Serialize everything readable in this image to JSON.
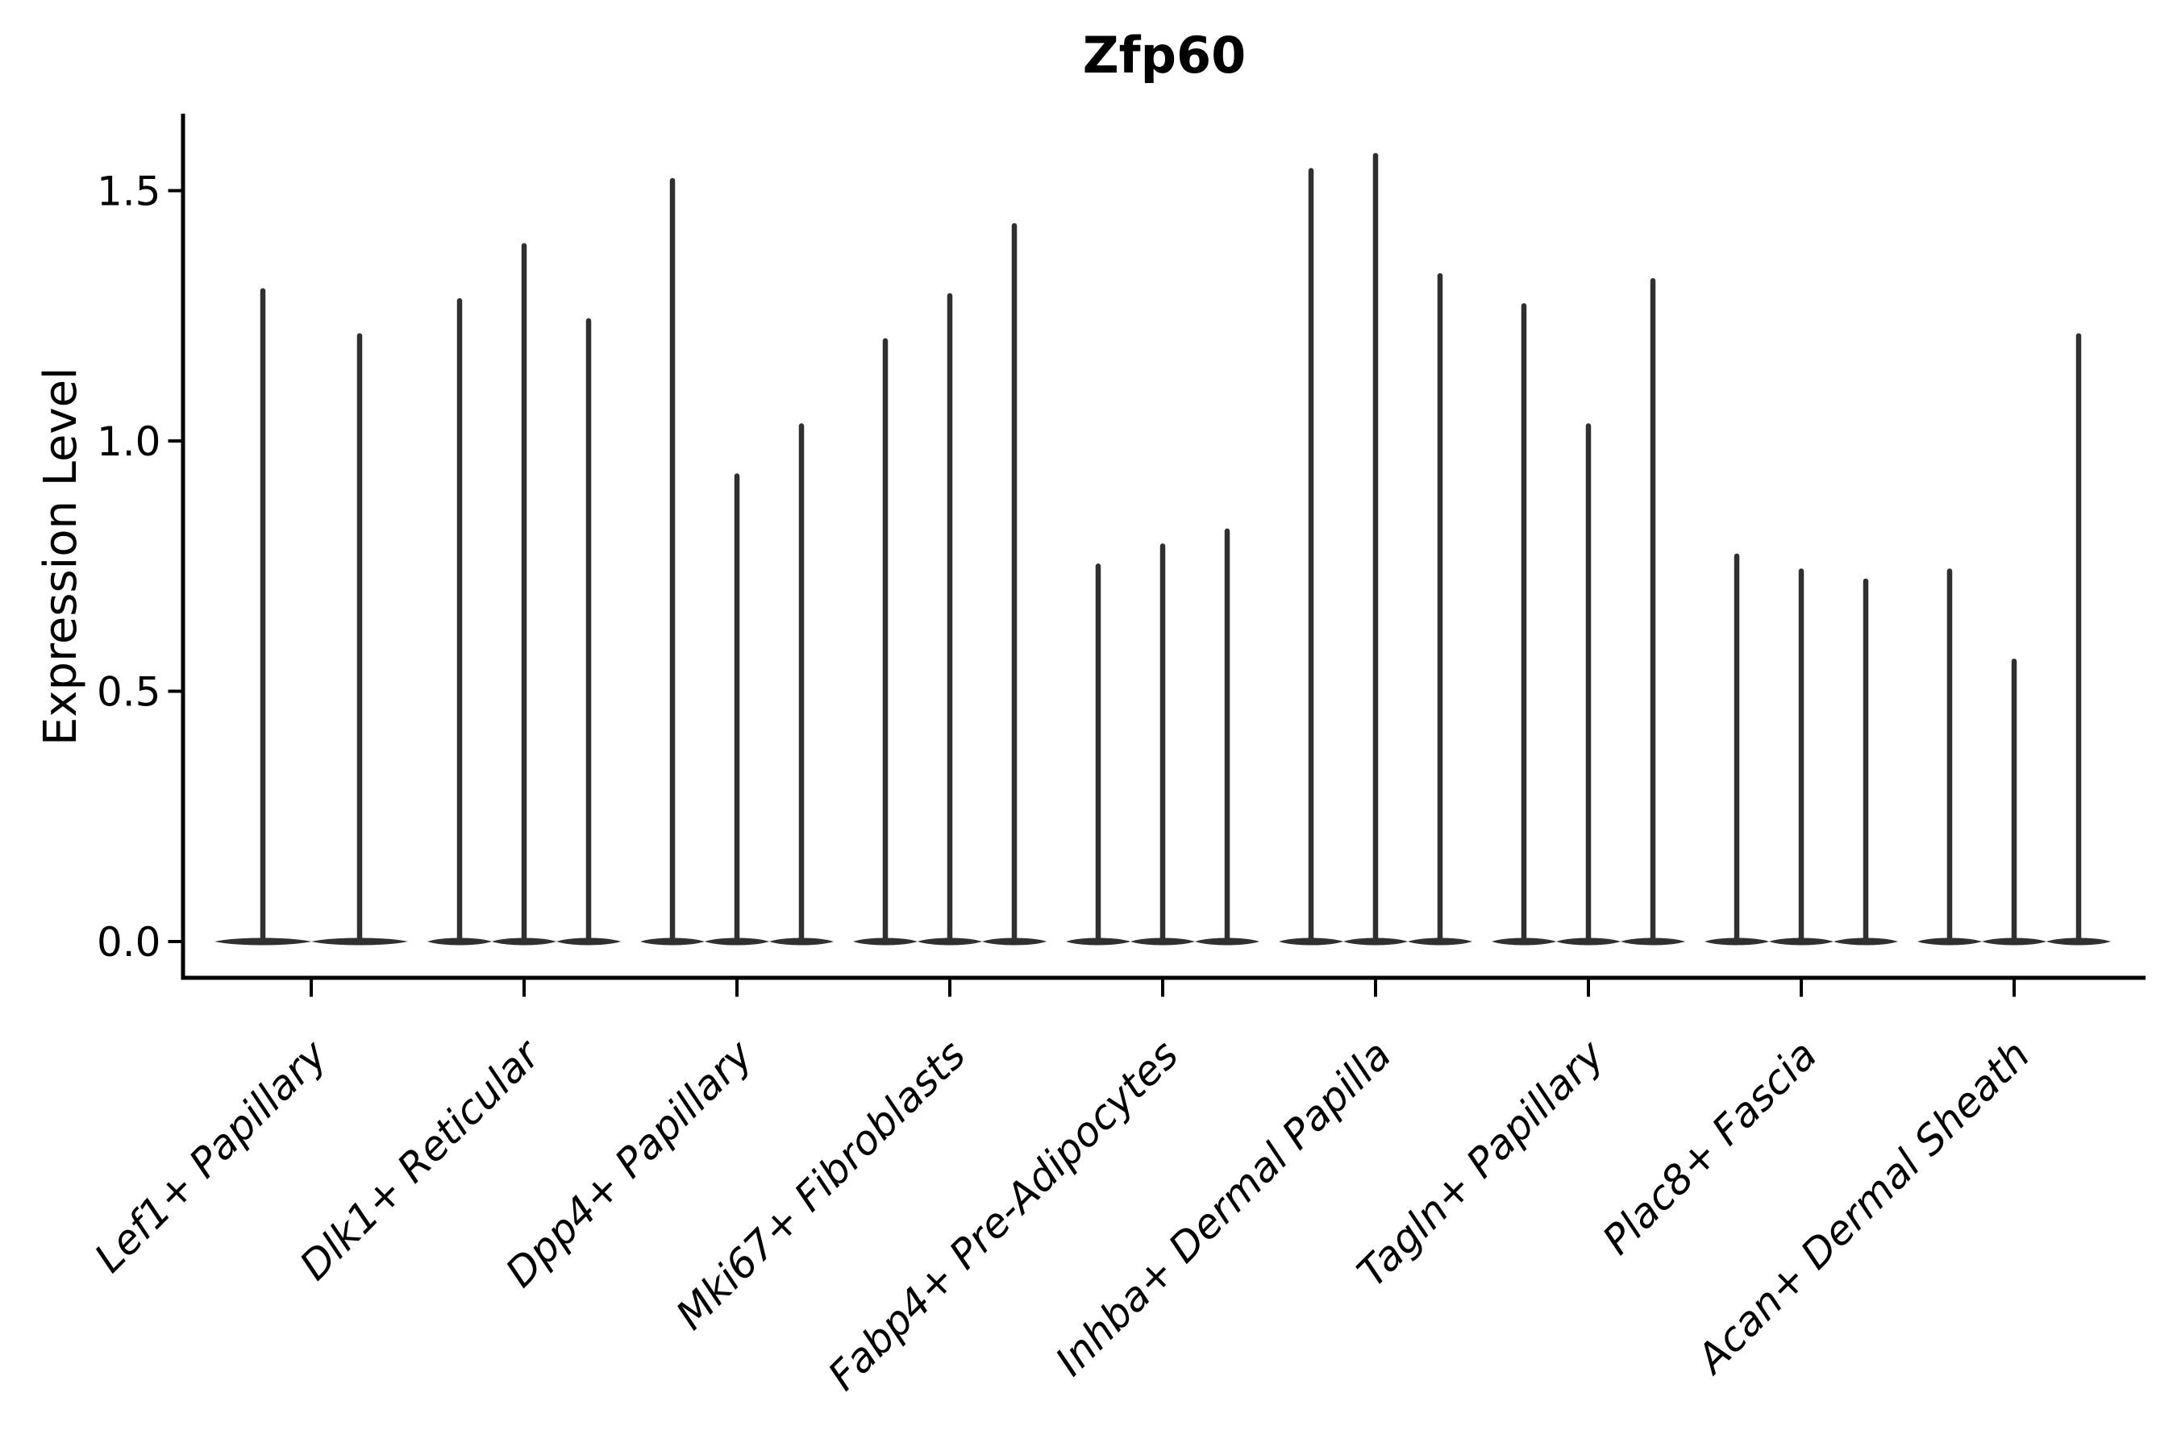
{
  "chart_data": {
    "type": "violin",
    "title": "Zfp60",
    "ylabel": "Expression Level",
    "xlabel": "",
    "grid": false,
    "legend": "none",
    "ylim": [
      -0.07,
      1.66
    ],
    "ytick_values": [
      0.0,
      0.5,
      1.0,
      1.5
    ],
    "ytick_labels": [
      "0.0",
      "0.5",
      "1.0",
      "1.5"
    ],
    "x_tick_rotation_deg": 45,
    "x_label_style": "italic",
    "categories": [
      "Lef1+ Papillary",
      "Dlk1+ Reticular",
      "Dpp4+ Papillary",
      "Mki67+ Fibroblasts",
      "Fabp4+ Pre-Adipocytes",
      "Inhba+ Dermal Papilla",
      "Tagln+ Papillary",
      "Plac8+ Fascia",
      "Acan+ Dermal Sheath"
    ],
    "groups": [
      {
        "category": "Lef1+ Papillary",
        "violin_peaks": [
          1.3,
          1.21
        ]
      },
      {
        "category": "Dlk1+ Reticular",
        "violin_peaks": [
          1.28,
          1.39,
          1.24
        ]
      },
      {
        "category": "Dpp4+ Papillary",
        "violin_peaks": [
          1.52,
          0.93,
          1.03
        ]
      },
      {
        "category": "Mki67+ Fibroblasts",
        "violin_peaks": [
          1.2,
          1.29,
          1.43
        ]
      },
      {
        "category": "Fabp4+ Pre-Adipocytes",
        "violin_peaks": [
          0.75,
          0.79,
          0.82
        ]
      },
      {
        "category": "Inhba+ Dermal Papilla",
        "violin_peaks": [
          1.54,
          1.57,
          1.33
        ]
      },
      {
        "category": "Tagln+ Papillary",
        "violin_peaks": [
          1.27,
          1.03,
          1.32
        ]
      },
      {
        "category": "Plac8+ Fascia",
        "violin_peaks": [
          0.77,
          0.74,
          0.72
        ]
      },
      {
        "category": "Acan+ Dermal Sheath",
        "violin_peaks": [
          0.74,
          0.56,
          1.21
        ]
      }
    ],
    "colors": {
      "violin": "#303030",
      "axis": "#000000",
      "text": "#000000",
      "background": "#ffffff"
    }
  }
}
